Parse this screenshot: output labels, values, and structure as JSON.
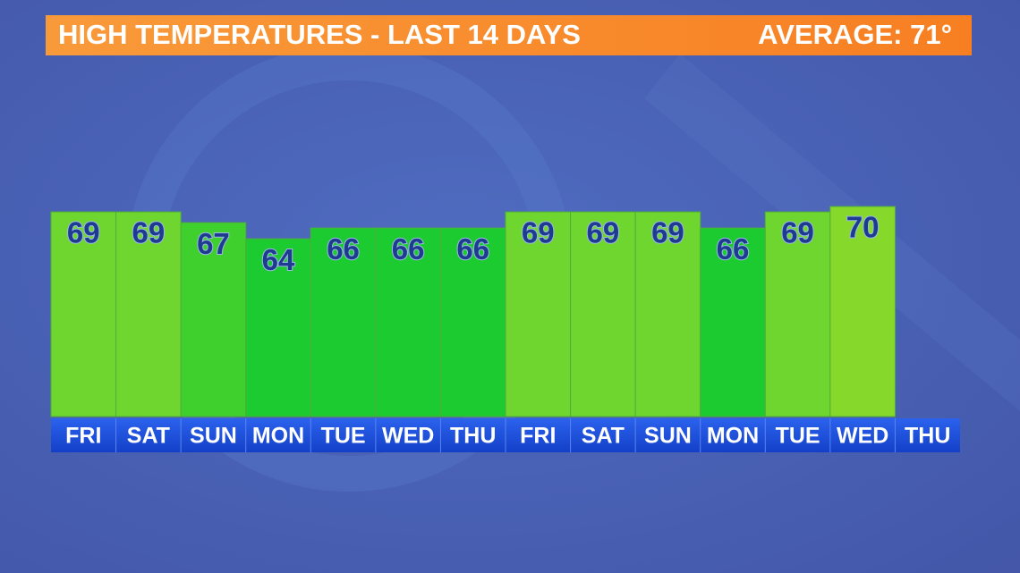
{
  "chart_data": {
    "type": "bar",
    "title": "HIGH TEMPERATURES - LAST 14 DAYS",
    "annotation": "AVERAGE: 71°",
    "categories": [
      "FRI",
      "SAT",
      "SUN",
      "MON",
      "TUE",
      "WED",
      "THU",
      "FRI",
      "SAT",
      "SUN",
      "MON",
      "TUE",
      "WED",
      "THU"
    ],
    "values": [
      69,
      69,
      67,
      64,
      66,
      66,
      66,
      69,
      69,
      69,
      66,
      69,
      70,
      null
    ],
    "colors": [
      "#6fd62f",
      "#6fd62f",
      "#3fd02e",
      "#1ccb2f",
      "#1ccb2f",
      "#1ccb2f",
      "#1ccb2f",
      "#6fd62f",
      "#6fd62f",
      "#6fd62f",
      "#1ccb2f",
      "#6fd62f",
      "#86d82b",
      "#86d82b"
    ],
    "ylim": [
      31,
      70
    ]
  }
}
